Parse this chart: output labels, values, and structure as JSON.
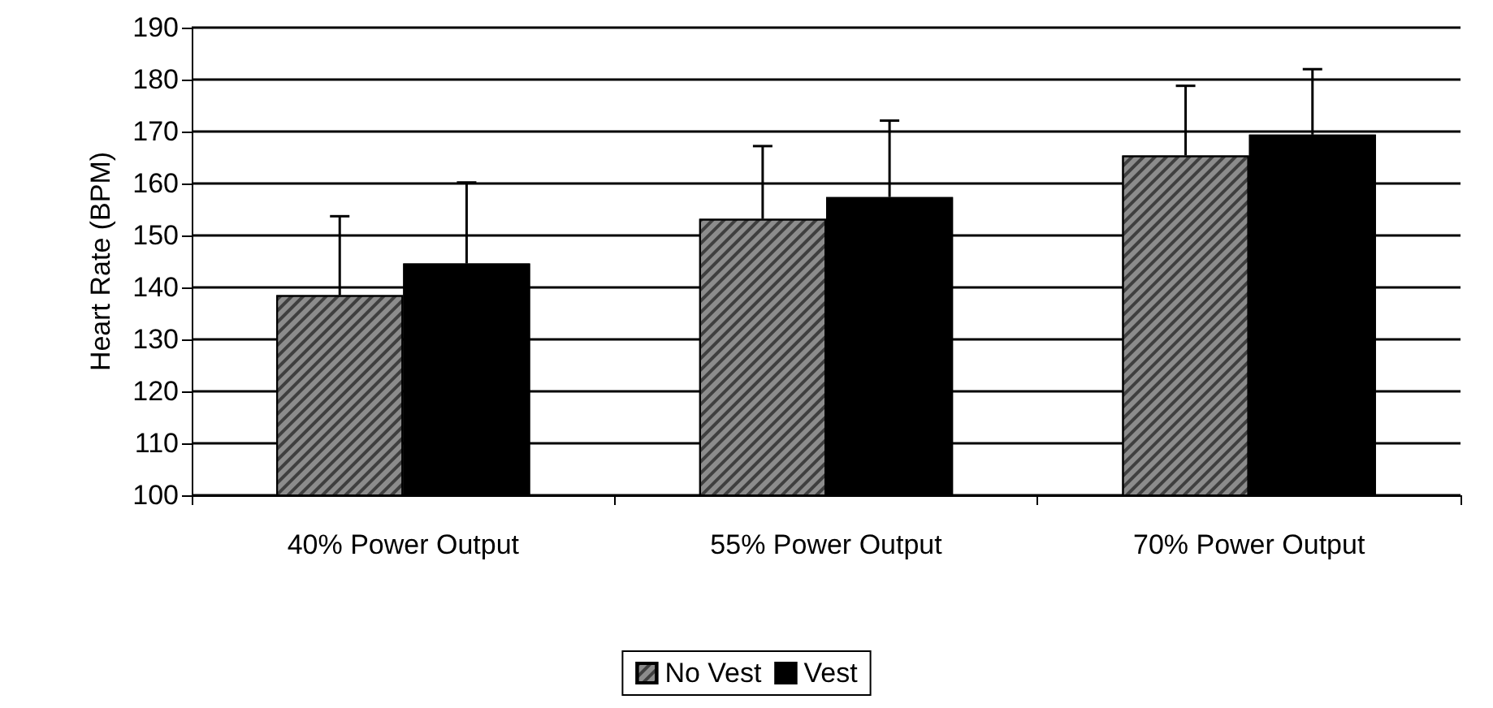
{
  "chart_data": {
    "type": "bar",
    "ylabel": "Heart Rate (BPM)",
    "categories": [
      "40% Power Output",
      "55% Power Output",
      "70% Power Output"
    ],
    "series": [
      {
        "name": "No Vest",
        "color": "#8c8c8c",
        "values": [
          138.5,
          153.2,
          165.4
        ],
        "errors": [
          [
            138.5,
            153.7
          ],
          [
            153.2,
            167.2
          ],
          [
            165.4,
            178.8
          ]
        ]
      },
      {
        "name": "Vest",
        "color": "#000000",
        "values": [
          144.6,
          157.4,
          169.4
        ],
        "errors": [
          [
            144.6,
            160.2
          ],
          [
            157.4,
            172.1
          ],
          [
            169.4,
            182
          ]
        ]
      }
    ],
    "ylim": [
      100,
      190
    ],
    "yticks": [
      100,
      110,
      120,
      130,
      140,
      150,
      160,
      170,
      180,
      190
    ],
    "grid": "y",
    "legend": "bottom"
  }
}
